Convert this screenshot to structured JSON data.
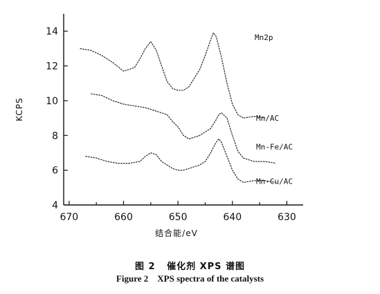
{
  "caption": {
    "chinese": "图 2   催化剂 XPS 谱图",
    "english": "Figure 2    XPS spectra of the catalysts"
  },
  "chart_data": {
    "type": "line",
    "title": "",
    "xlabel": "结合能/eV",
    "ylabel": "KCPS",
    "xlim": [
      671,
      627
    ],
    "ylim": [
      4,
      15
    ],
    "x_ticks": [
      670,
      660,
      650,
      640,
      630
    ],
    "y_ticks": [
      4,
      6,
      8,
      10,
      12,
      14
    ],
    "x_reversed": true,
    "grid": false,
    "legend": "labels placed at right end of each curve",
    "annotation": "Mn2p",
    "series": [
      {
        "name": "Mn/AC",
        "x": [
          668,
          666,
          664,
          662,
          660,
          658,
          657,
          656,
          655,
          654,
          653,
          652,
          651,
          650,
          649,
          648,
          647,
          646,
          645,
          644,
          643.5,
          643,
          642,
          641,
          640,
          639,
          638,
          636,
          634
        ],
        "y": [
          13.0,
          12.9,
          12.6,
          12.2,
          11.7,
          11.9,
          12.4,
          13.0,
          13.4,
          12.9,
          12.0,
          11.1,
          10.7,
          10.6,
          10.6,
          10.8,
          11.3,
          11.8,
          12.6,
          13.5,
          13.9,
          13.7,
          12.5,
          11.0,
          9.8,
          9.2,
          9.0,
          9.1,
          9.0
        ]
      },
      {
        "name": "Mn-Fe/AC",
        "x": [
          666,
          664,
          662,
          660,
          658,
          656,
          654,
          652,
          651,
          650,
          649,
          648,
          647,
          646,
          645,
          644,
          643,
          642.5,
          642,
          641,
          640,
          639,
          638,
          636,
          634,
          632
        ],
        "y": [
          10.4,
          10.3,
          10.0,
          9.8,
          9.7,
          9.6,
          9.4,
          9.2,
          8.8,
          8.5,
          8.0,
          7.8,
          7.9,
          8.0,
          8.2,
          8.4,
          8.9,
          9.2,
          9.3,
          9.0,
          8.0,
          7.1,
          6.7,
          6.5,
          6.5,
          6.4
        ]
      },
      {
        "name": "Mn-Cu/AC",
        "x": [
          667,
          665,
          663,
          661,
          659,
          657,
          656,
          655,
          654,
          653,
          652,
          651,
          650,
          649,
          648,
          647,
          646,
          645,
          644,
          643,
          642.5,
          642,
          641,
          640,
          639,
          638,
          636,
          634,
          632
        ],
        "y": [
          6.8,
          6.7,
          6.5,
          6.4,
          6.4,
          6.5,
          6.8,
          7.0,
          6.9,
          6.5,
          6.3,
          6.1,
          6.0,
          6.0,
          6.1,
          6.2,
          6.3,
          6.5,
          7.0,
          7.6,
          7.8,
          7.6,
          6.8,
          6.0,
          5.5,
          5.3,
          5.4,
          5.4,
          5.3
        ]
      }
    ]
  }
}
